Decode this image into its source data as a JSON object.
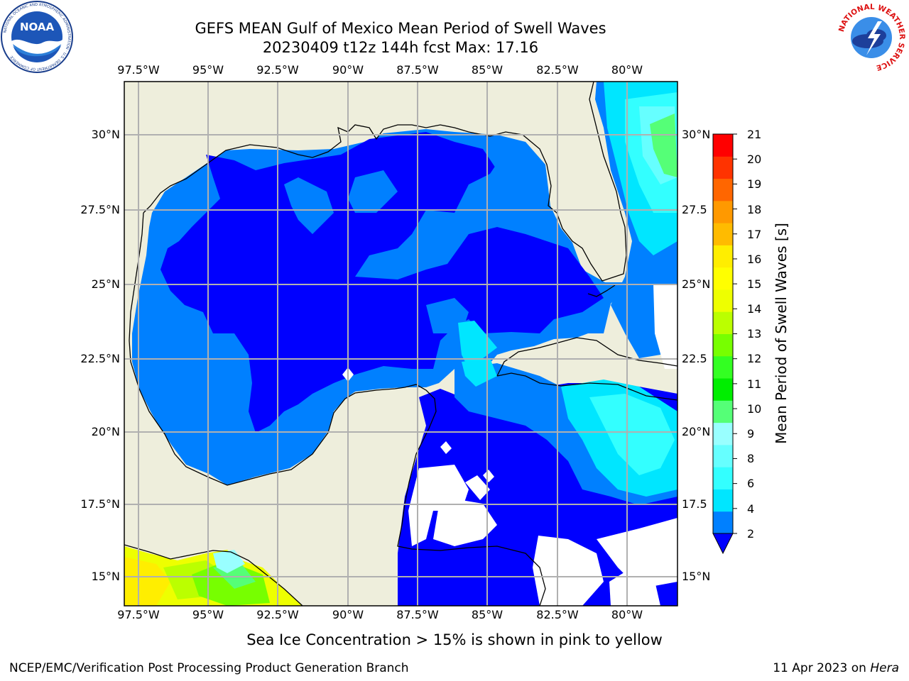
{
  "header": {
    "title_line1": "GEFS MEAN Gulf of Mexico Mean Period of Swell Waves",
    "title_line2": "20230409 t12z 144h fcst   Max: 17.16"
  },
  "logos": {
    "left_org": "NOAA",
    "left_ring_text": "NATIONAL OCEANIC AND ATMOSPHERIC ADMINISTRATION · U.S. DEPARTMENT OF COMMERCE",
    "right_ring_text": "NATIONAL WEATHER SERVICE"
  },
  "map": {
    "lon_labels": [
      "97.5°W",
      "95°W",
      "92.5°W",
      "90°W",
      "87.5°W",
      "85°W",
      "82.5°W",
      "80°W"
    ],
    "lat_labels_left": [
      "30°N",
      "27.5°N",
      "25°N",
      "22.5°N",
      "20°N",
      "17.5°N",
      "15°N"
    ],
    "lat_labels_right": [
      "30°N",
      "27.5",
      "25°N",
      "22.5",
      "20°N",
      "17.5",
      "15°N"
    ],
    "land_color": "#eeeedc",
    "ocean_color_2_4": "#0000ff",
    "ocean_color_4_6": "#0080ff"
  },
  "colorbar": {
    "title": "Mean Period of Swell Waves [s]",
    "ticks": [
      "21",
      "20",
      "19",
      "18",
      "17",
      "16",
      "15",
      "14",
      "13",
      "12",
      "11",
      "10",
      "9",
      "8",
      "6",
      "4",
      "2"
    ],
    "colors_bottom_to_top": [
      "#0080ff",
      "#00e6ff",
      "#33ffff",
      "#66ffff",
      "#99ffff",
      "#55ff77",
      "#00ee00",
      "#33ff22",
      "#77ff00",
      "#bbff00",
      "#eeff00",
      "#ffff00",
      "#ffee00",
      "#ffbb00",
      "#ff9900",
      "#ff6600",
      "#ff3300",
      "#ff0000"
    ],
    "extend_color": "#0000ff"
  },
  "caption": "Sea Ice Concentration > 15% is shown in pink to yellow",
  "footer": {
    "left": "NCEP/EMC/Verification Post Processing Product Generation Branch",
    "right_prefix": "11 Apr 2023 on ",
    "right_host": "Hera"
  }
}
